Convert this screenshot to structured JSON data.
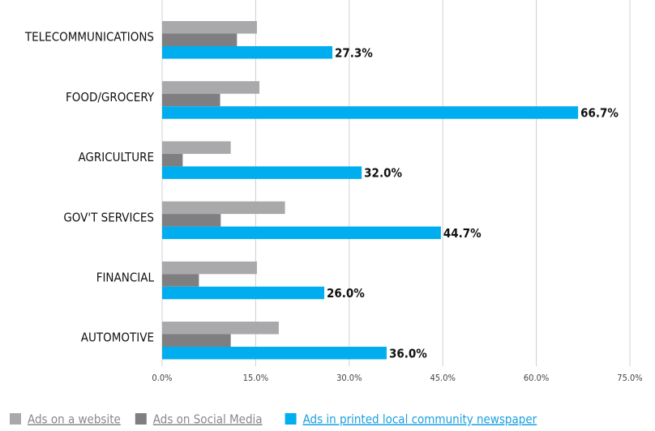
{
  "chart_data": {
    "type": "bar",
    "orientation": "horizontal",
    "categories": [
      "TELECOMMUNICATIONS",
      "FOOD/GROCERY",
      "AGRICULTURE",
      "GOV'T SERVICES",
      "FINANCIAL",
      "AUTOMOTIVE"
    ],
    "series": [
      {
        "name": "Ads on a website",
        "color": "#a9a9ab",
        "values": [
          15.2,
          15.6,
          11.0,
          19.7,
          15.2,
          18.7
        ]
      },
      {
        "name": "Ads on Social Media",
        "color": "#7f7f82",
        "values": [
          12.0,
          9.3,
          3.3,
          9.4,
          5.9,
          11.0
        ]
      },
      {
        "name": "Ads in printed local community newspaper",
        "color": "#00aeef",
        "values": [
          27.3,
          66.7,
          32.0,
          44.7,
          26.0,
          36.0
        ],
        "value_labels": [
          "27.3%",
          "66.7%",
          "32.0%",
          "44.7%",
          "26.0%",
          "36.0%"
        ]
      }
    ],
    "xlim": [
      0,
      75
    ],
    "xticks": [
      {
        "value": 0,
        "label": "0.0%"
      },
      {
        "value": 15,
        "label": "15.0%"
      },
      {
        "value": 30,
        "label": "30.0%"
      },
      {
        "value": 45,
        "label": "45.0%"
      },
      {
        "value": 60,
        "label": "60.0%"
      },
      {
        "value": 75,
        "label": "75.0%"
      }
    ],
    "grid": true,
    "legend": "bottom"
  }
}
